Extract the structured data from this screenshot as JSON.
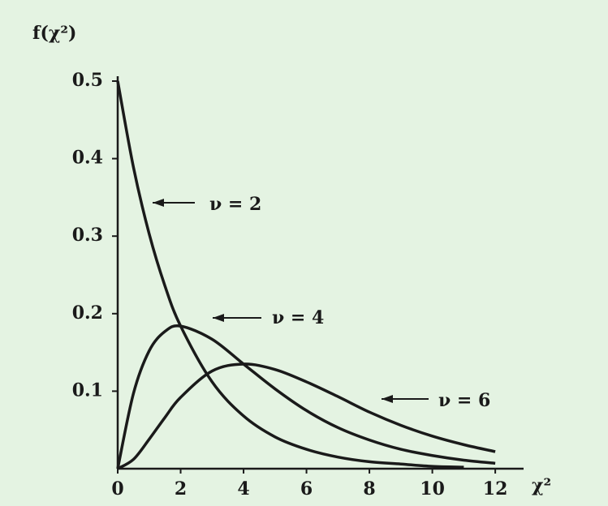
{
  "chart_data": {
    "type": "line",
    "x_label": "χ²",
    "y_label": "f(χ²)",
    "x": [
      0,
      0.5,
      1,
      1.5,
      2,
      3,
      4,
      5,
      6,
      7,
      8,
      9,
      10,
      11,
      12
    ],
    "series": [
      {
        "name": "ν = 2",
        "color": "#1a1a1a",
        "values": [
          0.5,
          0.389,
          0.303,
          0.236,
          0.184,
          0.112,
          0.068,
          0.041,
          0.025,
          0.015,
          0.009,
          0.006,
          0.003,
          0.002,
          null
        ]
      },
      {
        "name": "ν = 4",
        "color": "#1a1a1a",
        "values": [
          0,
          0.097,
          0.152,
          0.177,
          0.184,
          0.167,
          0.135,
          0.103,
          0.075,
          0.053,
          0.037,
          0.025,
          0.017,
          0.011,
          0.007
        ]
      },
      {
        "name": "ν = 6",
        "color": "#1a1a1a",
        "values": [
          0,
          0.012,
          0.038,
          0.066,
          0.092,
          0.126,
          0.135,
          0.128,
          0.112,
          0.093,
          0.073,
          0.056,
          0.042,
          0.031,
          0.022
        ]
      }
    ],
    "xlim": [
      0,
      12.9
    ],
    "ylim": [
      0,
      0.5
    ],
    "xticks": [
      0,
      2,
      4,
      6,
      8,
      10,
      12
    ],
    "yticks": [
      0.1,
      0.2,
      0.3,
      0.4,
      0.5
    ]
  }
}
